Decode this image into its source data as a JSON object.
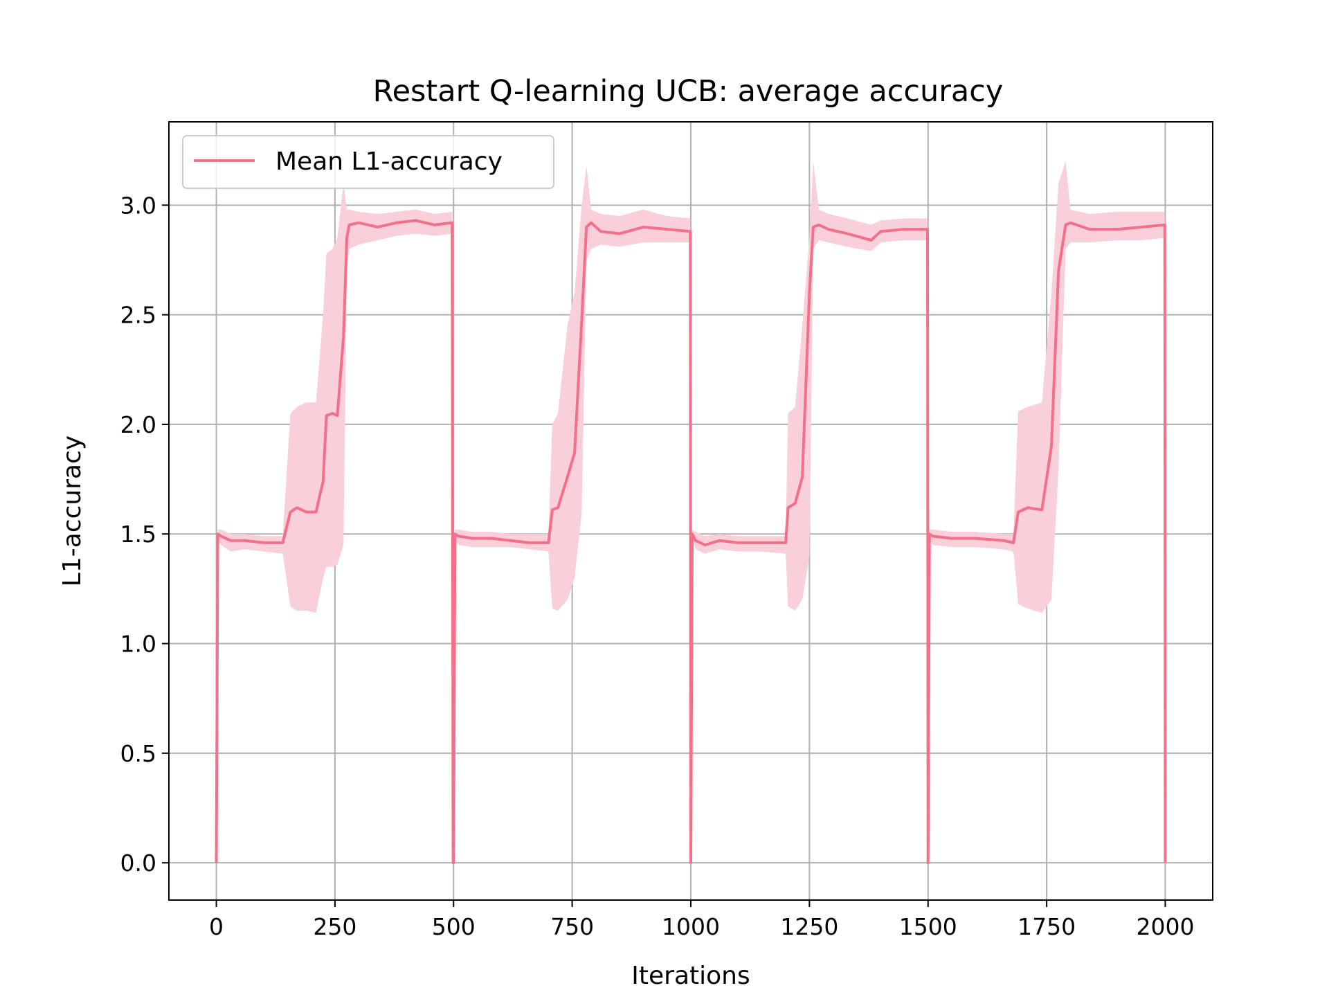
{
  "chart_data": {
    "type": "line",
    "title": "Restart Q-learning UCB: average accuracy",
    "xlabel": "Iterations",
    "ylabel": "L1-accuracy",
    "xlim": [
      -100,
      2100
    ],
    "ylim": [
      -0.17,
      3.38
    ],
    "xticks": [
      0,
      250,
      500,
      750,
      1000,
      1250,
      1500,
      1750,
      2000
    ],
    "yticks": [
      0.0,
      0.5,
      1.0,
      1.5,
      2.0,
      2.5,
      3.0
    ],
    "xtick_labels": [
      "0",
      "250",
      "500",
      "750",
      "1000",
      "1250",
      "1500",
      "1750",
      "2000"
    ],
    "ytick_labels": [
      "0.0",
      "0.5",
      "1.0",
      "1.5",
      "2.0",
      "2.5",
      "3.0"
    ],
    "grid": true,
    "legend_position": "top-left",
    "series": [
      {
        "name": "Mean L1-accuracy",
        "color": "#f3708a",
        "band_color": "#f9cfd9",
        "x": [
          0,
          3,
          10,
          30,
          60,
          100,
          140,
          156,
          170,
          190,
          210,
          225,
          232,
          245,
          255,
          268,
          275,
          280,
          300,
          340,
          380,
          420,
          460,
          497,
          499,
          500,
          503,
          510,
          540,
          580,
          620,
          660,
          700,
          708,
          720,
          740,
          755,
          770,
          780,
          790,
          810,
          850,
          900,
          950,
          999,
          1000,
          1003,
          1010,
          1030,
          1060,
          1100,
          1150,
          1200,
          1205,
          1220,
          1235,
          1250,
          1258,
          1270,
          1290,
          1330,
          1380,
          1400,
          1450,
          1499,
          1500,
          1503,
          1510,
          1550,
          1600,
          1660,
          1680,
          1690,
          1710,
          1740,
          1760,
          1775,
          1790,
          1800,
          1840,
          1900,
          1950,
          1999,
          2000
        ],
        "mean": [
          0.0,
          1.5,
          1.49,
          1.47,
          1.47,
          1.46,
          1.46,
          1.6,
          1.62,
          1.6,
          1.6,
          1.74,
          2.04,
          2.05,
          2.04,
          2.4,
          2.85,
          2.91,
          2.92,
          2.9,
          2.92,
          2.93,
          2.91,
          2.92,
          0.0,
          0.0,
          1.5,
          1.49,
          1.48,
          1.48,
          1.47,
          1.46,
          1.46,
          1.61,
          1.62,
          1.76,
          1.87,
          2.47,
          2.9,
          2.92,
          2.88,
          2.87,
          2.9,
          2.89,
          2.88,
          0.0,
          1.5,
          1.47,
          1.45,
          1.47,
          1.46,
          1.46,
          1.46,
          1.62,
          1.64,
          1.76,
          2.6,
          2.9,
          2.91,
          2.89,
          2.87,
          2.84,
          2.88,
          2.89,
          2.89,
          0.0,
          1.5,
          1.49,
          1.48,
          1.48,
          1.47,
          1.46,
          1.6,
          1.62,
          1.61,
          1.9,
          2.7,
          2.91,
          2.92,
          2.89,
          2.89,
          2.9,
          2.91,
          0.0
        ],
        "lower": [
          0.0,
          1.47,
          1.45,
          1.42,
          1.43,
          1.42,
          1.41,
          1.17,
          1.15,
          1.15,
          1.14,
          1.3,
          1.35,
          1.35,
          1.36,
          1.45,
          2.7,
          2.8,
          2.82,
          2.84,
          2.86,
          2.87,
          2.86,
          2.87,
          0.0,
          0.0,
          1.47,
          1.45,
          1.44,
          1.44,
          1.44,
          1.43,
          1.42,
          1.16,
          1.15,
          1.2,
          1.3,
          1.6,
          2.75,
          2.8,
          2.82,
          2.81,
          2.83,
          2.83,
          2.83,
          0.0,
          1.47,
          1.43,
          1.41,
          1.43,
          1.42,
          1.42,
          1.41,
          1.17,
          1.15,
          1.2,
          1.4,
          2.8,
          2.84,
          2.83,
          2.81,
          2.79,
          2.83,
          2.84,
          2.84,
          0.0,
          1.47,
          1.45,
          1.44,
          1.44,
          1.43,
          1.42,
          1.18,
          1.16,
          1.14,
          1.2,
          1.8,
          2.8,
          2.83,
          2.83,
          2.84,
          2.84,
          2.85,
          0.0
        ],
        "upper": [
          0.0,
          1.52,
          1.52,
          1.5,
          1.5,
          1.49,
          1.49,
          2.05,
          2.08,
          2.1,
          2.1,
          2.5,
          2.78,
          2.8,
          2.85,
          3.1,
          2.98,
          2.98,
          2.97,
          2.96,
          2.97,
          2.98,
          2.96,
          2.97,
          0.0,
          0.0,
          1.52,
          1.52,
          1.51,
          1.51,
          1.5,
          1.5,
          1.5,
          2.0,
          2.05,
          2.45,
          2.6,
          3.0,
          3.18,
          2.98,
          2.96,
          2.95,
          2.98,
          2.95,
          2.94,
          0.0,
          1.52,
          1.51,
          1.49,
          1.5,
          1.49,
          1.49,
          1.49,
          2.05,
          2.08,
          2.45,
          2.85,
          3.2,
          2.98,
          2.96,
          2.94,
          2.91,
          2.93,
          2.94,
          2.94,
          0.0,
          1.52,
          1.52,
          1.51,
          1.51,
          1.5,
          1.5,
          2.06,
          2.08,
          2.1,
          2.6,
          3.1,
          3.2,
          2.98,
          2.96,
          2.97,
          2.97,
          2.97,
          0.0
        ]
      }
    ]
  }
}
